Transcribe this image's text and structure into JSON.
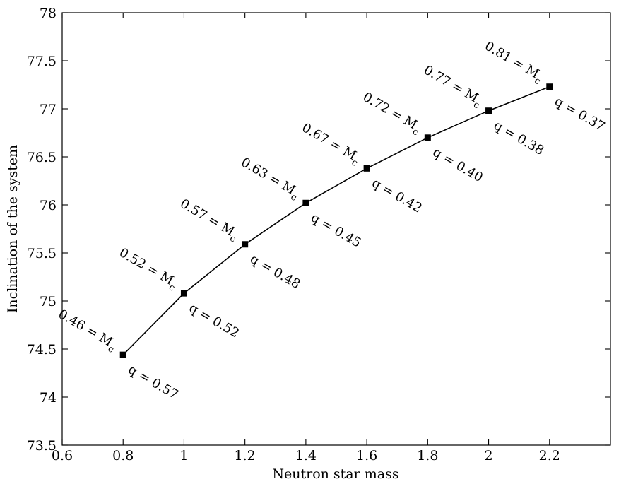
{
  "chart_data": {
    "type": "line",
    "xlabel": "Neutron star mass",
    "ylabel": "Inclination of the system",
    "xlim": [
      0.6,
      2.4
    ],
    "ylim": [
      73.5,
      78
    ],
    "x_ticks": [
      "0.6",
      "0.8",
      "1",
      "1.2",
      "1.4",
      "1.6",
      "1.8",
      "2",
      "2.2"
    ],
    "x_tick_values": [
      0.6,
      0.8,
      1.0,
      1.2,
      1.4,
      1.6,
      1.8,
      2.0,
      2.2
    ],
    "y_ticks": [
      "73.5",
      "74",
      "74.5",
      "75",
      "75.5",
      "76",
      "76.5",
      "77",
      "77.5",
      "78"
    ],
    "y_tick_values": [
      73.5,
      74.0,
      74.5,
      75.0,
      75.5,
      76.0,
      76.5,
      77.0,
      77.5,
      78.0
    ],
    "grid": false,
    "marker": "square",
    "color": "#000000",
    "x": [
      0.8,
      1.0,
      1.2,
      1.4,
      1.6,
      1.8,
      2.0,
      2.2
    ],
    "y": [
      74.44,
      75.08,
      75.59,
      76.02,
      76.38,
      76.7,
      76.98,
      77.23
    ],
    "mc_labels": [
      "0.46 = M",
      "0.52 = M",
      "0.57 = M",
      "0.63 = M",
      "0.67 = M",
      "0.72 = M",
      "0.77 = M",
      "0.81 = M"
    ],
    "mc_subscript": "c",
    "q_labels": [
      "q = 0.57",
      "q = 0.52",
      "q = 0.48",
      "q = 0.45",
      "q = 0.42",
      "q = 0.40",
      "q = 0.38",
      "q = 0.37"
    ]
  }
}
